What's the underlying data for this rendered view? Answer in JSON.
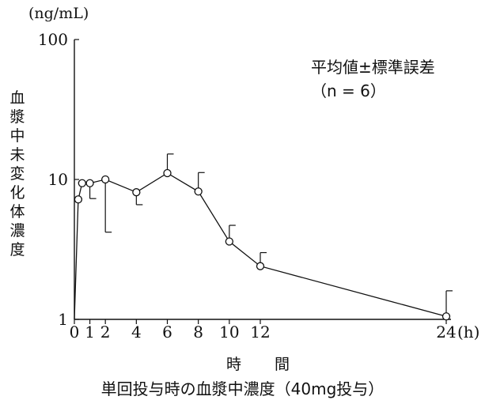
{
  "chart_data": {
    "type": "line",
    "title": "単回投与時の血漿中濃度（40mg投与）",
    "ylabel": "血漿中未変化体濃度",
    "yunit": "(ng/mL)",
    "xlabel": "時 間",
    "xunit": "(h)",
    "yscale": "log",
    "ylim": [
      1,
      100
    ],
    "yticks": [
      1,
      10,
      100
    ],
    "yticklabels": [
      "1",
      "10",
      "100"
    ],
    "xlim": [
      0,
      24
    ],
    "xticks": [
      0,
      1,
      2,
      4,
      6,
      8,
      10,
      12,
      24
    ],
    "xticklabels": [
      "0",
      "1",
      "2",
      "4",
      "6",
      "8",
      "10",
      "12",
      "24"
    ],
    "legend": [
      "平均値±標準誤差",
      "（n = 6）"
    ],
    "series": [
      {
        "x": [
          0,
          0.25,
          0.5,
          1,
          2,
          4,
          6,
          8,
          10,
          12,
          24
        ],
        "y": [
          1,
          7.2,
          9.4,
          9.4,
          10.0,
          8.1,
          11.1,
          8.2,
          3.6,
          2.4,
          1.05
        ],
        "err_upper": [
          null,
          null,
          null,
          7.3,
          4.2,
          6.6,
          15.2,
          11.2,
          4.7,
          3.0,
          1.6
        ],
        "marker": "circle-open"
      }
    ]
  },
  "labels": {
    "caption": "単回投与時の血漿中濃度（40mg投与）"
  }
}
